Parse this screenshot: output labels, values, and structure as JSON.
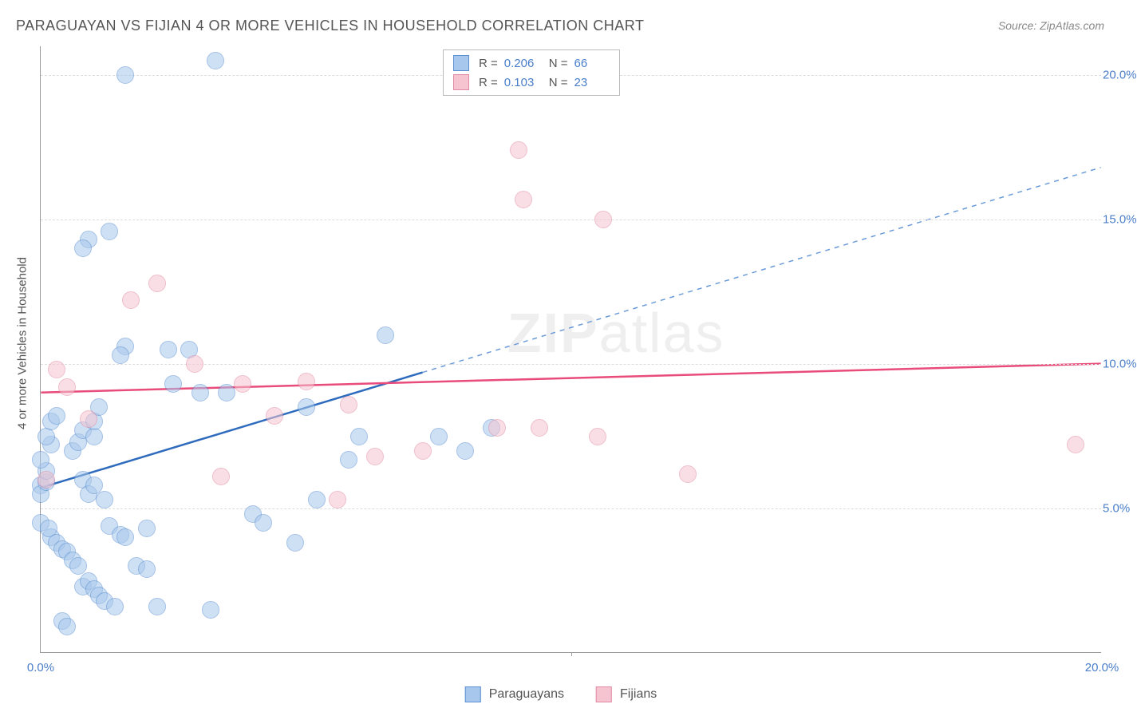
{
  "title": "PARAGUAYAN VS FIJIAN 4 OR MORE VEHICLES IN HOUSEHOLD CORRELATION CHART",
  "source": "Source: ZipAtlas.com",
  "y_axis_label": "4 or more Vehicles in Household",
  "watermark_zip": "ZIP",
  "watermark_atlas": "atlas",
  "chart": {
    "type": "scatter",
    "xlim": [
      0,
      20
    ],
    "ylim": [
      0,
      21
    ],
    "y_gridlines": [
      5,
      10,
      15,
      20
    ],
    "y_tick_labels": [
      "5.0%",
      "10.0%",
      "15.0%",
      "20.0%"
    ],
    "x_ticks": [
      0,
      10,
      20
    ],
    "x_tick_labels": [
      "0.0%",
      "",
      "20.0%"
    ],
    "x_tick_mid": 10,
    "background_color": "#ffffff",
    "grid_color": "#dddddd",
    "axis_color": "#999999",
    "tick_label_color": "#4a7ec9",
    "marker_radius": 11,
    "marker_opacity": 0.55
  },
  "series": [
    {
      "name": "Paraguayans",
      "fill_color": "#a7c7ec",
      "stroke_color": "#5b8fd0",
      "trend_solid_color": "#2e6bbd",
      "trend_dash_color": "#6a9bd8",
      "r_value": "0.206",
      "n_value": "66",
      "trend": {
        "x1": 0,
        "y1": 5.7,
        "x2": 20,
        "y2": 16.8,
        "solid_x_end": 7.2
      },
      "points": [
        [
          0.0,
          5.8
        ],
        [
          0.0,
          5.5
        ],
        [
          0.1,
          5.9
        ],
        [
          0.1,
          6.3
        ],
        [
          0.0,
          4.5
        ],
        [
          0.0,
          6.7
        ],
        [
          0.2,
          7.2
        ],
        [
          0.1,
          7.5
        ],
        [
          0.2,
          8.0
        ],
        [
          0.3,
          8.2
        ],
        [
          0.2,
          4.0
        ],
        [
          0.15,
          4.3
        ],
        [
          0.3,
          3.8
        ],
        [
          0.4,
          3.6
        ],
        [
          0.5,
          3.5
        ],
        [
          0.6,
          3.2
        ],
        [
          0.7,
          3.0
        ],
        [
          0.8,
          2.3
        ],
        [
          0.9,
          2.5
        ],
        [
          1.0,
          2.2
        ],
        [
          1.1,
          2.0
        ],
        [
          1.2,
          1.8
        ],
        [
          1.4,
          1.6
        ],
        [
          0.4,
          1.1
        ],
        [
          0.5,
          0.9
        ],
        [
          0.8,
          6.0
        ],
        [
          0.9,
          5.5
        ],
        [
          1.0,
          5.8
        ],
        [
          1.2,
          5.3
        ],
        [
          1.3,
          4.4
        ],
        [
          1.5,
          4.1
        ],
        [
          1.6,
          4.0
        ],
        [
          1.8,
          3.0
        ],
        [
          2.0,
          2.9
        ],
        [
          2.0,
          4.3
        ],
        [
          2.2,
          1.6
        ],
        [
          0.6,
          7.0
        ],
        [
          0.7,
          7.3
        ],
        [
          0.8,
          7.7
        ],
        [
          1.0,
          7.5
        ],
        [
          1.0,
          8.0
        ],
        [
          1.1,
          8.5
        ],
        [
          1.3,
          14.6
        ],
        [
          0.9,
          14.3
        ],
        [
          0.8,
          14.0
        ],
        [
          1.6,
          10.6
        ],
        [
          1.5,
          10.3
        ],
        [
          2.4,
          10.5
        ],
        [
          2.8,
          10.5
        ],
        [
          1.6,
          20.0
        ],
        [
          3.0,
          9.0
        ],
        [
          3.5,
          9.0
        ],
        [
          4.0,
          4.8
        ],
        [
          4.2,
          4.5
        ],
        [
          4.8,
          3.8
        ],
        [
          5.2,
          5.3
        ],
        [
          6.0,
          7.5
        ],
        [
          3.2,
          1.5
        ],
        [
          5.0,
          8.5
        ],
        [
          5.8,
          6.7
        ],
        [
          6.5,
          11.0
        ],
        [
          7.5,
          7.5
        ],
        [
          8.0,
          7.0
        ],
        [
          8.5,
          7.8
        ],
        [
          3.3,
          20.5
        ],
        [
          2.5,
          9.3
        ]
      ]
    },
    {
      "name": "Fijians",
      "fill_color": "#f5c4d0",
      "stroke_color": "#e18aa4",
      "trend_solid_color": "#e94b7a",
      "trend_dash_color": "#e94b7a",
      "r_value": "0.103",
      "n_value": "23",
      "trend": {
        "x1": 0,
        "y1": 9.0,
        "x2": 20,
        "y2": 10.0,
        "solid_x_end": 20
      },
      "points": [
        [
          0.1,
          6.0
        ],
        [
          0.5,
          9.2
        ],
        [
          0.9,
          8.1
        ],
        [
          0.3,
          9.8
        ],
        [
          1.7,
          12.2
        ],
        [
          2.2,
          12.8
        ],
        [
          2.9,
          10.0
        ],
        [
          3.8,
          9.3
        ],
        [
          3.4,
          6.1
        ],
        [
          5.0,
          9.4
        ],
        [
          5.6,
          5.3
        ],
        [
          5.8,
          8.6
        ],
        [
          6.3,
          6.8
        ],
        [
          7.2,
          7.0
        ],
        [
          8.6,
          7.8
        ],
        [
          9.0,
          17.4
        ],
        [
          9.1,
          15.7
        ],
        [
          9.4,
          7.8
        ],
        [
          10.6,
          15.0
        ],
        [
          10.5,
          7.5
        ],
        [
          12.2,
          6.2
        ],
        [
          19.5,
          7.2
        ],
        [
          4.4,
          8.2
        ]
      ]
    }
  ],
  "legend_top": {
    "r_label": "R =",
    "n_label": "N ="
  },
  "legend_bottom": {
    "items": [
      "Paraguayans",
      "Fijians"
    ]
  }
}
